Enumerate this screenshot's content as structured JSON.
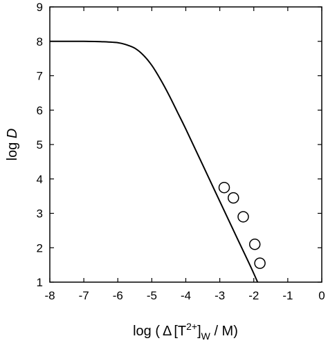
{
  "chart_data": {
    "type": "scatter",
    "xlabel": {
      "prefix": "log (",
      "delta": "Δ",
      "bracket_open": "[T",
      "superscript": "2+",
      "bracket_close": "]",
      "subscript": "W",
      "suffix": " / M)"
    },
    "ylabel": {
      "prefix": "log ",
      "variable": "D"
    },
    "xlim": [
      -8,
      0
    ],
    "ylim": [
      1,
      9
    ],
    "xticks": [
      "-8",
      "-7",
      "-6",
      "-5",
      "-4",
      "-3",
      "-2",
      "-1",
      "0"
    ],
    "yticks": [
      "1",
      "2",
      "3",
      "4",
      "5",
      "6",
      "7",
      "8",
      "9"
    ],
    "grid": false,
    "series": [
      {
        "kind": "line",
        "points": [
          [
            -8.0,
            8.0
          ],
          [
            -7.0,
            8.0
          ],
          [
            -6.5,
            7.99
          ],
          [
            -6.0,
            7.96
          ],
          [
            -5.75,
            7.9
          ],
          [
            -5.5,
            7.8
          ],
          [
            -5.25,
            7.6
          ],
          [
            -5.0,
            7.3
          ],
          [
            -4.75,
            6.9
          ],
          [
            -4.5,
            6.45
          ],
          [
            -4.25,
            5.95
          ],
          [
            -4.0,
            5.45
          ],
          [
            -3.5,
            4.4
          ],
          [
            -3.0,
            3.35
          ],
          [
            -2.5,
            2.3
          ],
          [
            -2.0,
            1.25
          ],
          [
            -1.45,
            0.0
          ]
        ]
      },
      {
        "kind": "markers",
        "marker": "open-circle",
        "points": [
          [
            -2.87,
            3.75
          ],
          [
            -2.6,
            3.45
          ],
          [
            -2.31,
            2.9
          ],
          [
            -1.97,
            2.1
          ],
          [
            -1.82,
            1.55
          ]
        ]
      }
    ]
  }
}
